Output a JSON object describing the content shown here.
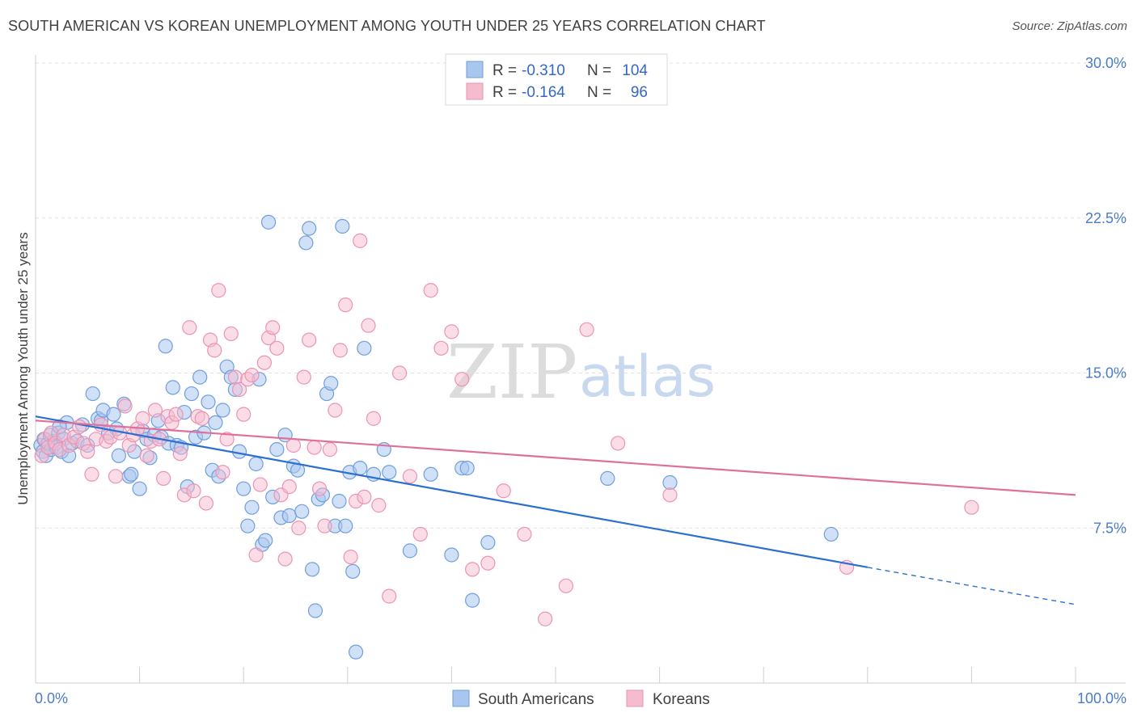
{
  "title": "SOUTH AMERICAN VS KOREAN UNEMPLOYMENT AMONG YOUTH UNDER 25 YEARS CORRELATION CHART",
  "source": "Source: ZipAtlas.com",
  "watermark": {
    "zip": "ZIP",
    "atlas": "atlas"
  },
  "colors": {
    "blue_fill": "#a9c6ee",
    "blue_stroke": "#6f9fdb",
    "blue_line": "#2b6fd1",
    "pink_fill": "#f5bcd0",
    "pink_stroke": "#ec93b3",
    "pink_line": "#e0709a",
    "grid": "#e0e0e0",
    "tick_label": "#4a7cc9"
  },
  "legend": {
    "rows": [
      {
        "r_label": "R = ",
        "r_value": "-0.310",
        "n_label": "N = ",
        "n_value": "104"
      },
      {
        "r_label": "R = ",
        "r_value": "-0.164",
        "n_label": "N = ",
        "n_value": "96"
      }
    ]
  },
  "chart_data": {
    "type": "scatter",
    "xlabel": "",
    "ylabel": "Unemployment Among Youth under 25 years",
    "xlim": [
      0,
      100
    ],
    "ylim": [
      0,
      30
    ],
    "x_tick_labels": [
      "0.0%",
      "100.0%"
    ],
    "y_ticks": [
      7.5,
      15.0,
      22.5,
      30.0
    ],
    "y_tick_labels": [
      "7.5%",
      "15.0%",
      "22.5%",
      "30.0%"
    ],
    "grid": true,
    "legend_position": "top-center",
    "series": [
      {
        "name": "South Americans",
        "color": "#a9c6ee",
        "trend": {
          "x": [
            0,
            80
          ],
          "y": [
            12.9,
            5.6
          ],
          "dashed_x": [
            80,
            100
          ],
          "dashed_y": [
            5.6,
            3.8
          ]
        },
        "points": [
          [
            0.5,
            11.5
          ],
          [
            0.7,
            11.2
          ],
          [
            0.8,
            11.8
          ],
          [
            1.0,
            11.0
          ],
          [
            1.2,
            11.6
          ],
          [
            1.4,
            12.0
          ],
          [
            1.5,
            11.3
          ],
          [
            1.8,
            11.7
          ],
          [
            2.0,
            11.4
          ],
          [
            2.2,
            12.1
          ],
          [
            2.5,
            11.2
          ],
          [
            2.7,
            11.8
          ],
          [
            3.0,
            12.6
          ],
          [
            3.2,
            11.0
          ],
          [
            3.5,
            11.6
          ],
          [
            4.0,
            11.7
          ],
          [
            4.5,
            12.5
          ],
          [
            5.0,
            11.5
          ],
          [
            5.5,
            14.0
          ],
          [
            6.0,
            12.8
          ],
          [
            6.3,
            12.7
          ],
          [
            6.5,
            13.2
          ],
          [
            7.0,
            12.1
          ],
          [
            7.5,
            13.0
          ],
          [
            7.8,
            12.3
          ],
          [
            8.0,
            11.0
          ],
          [
            8.5,
            13.5
          ],
          [
            9.0,
            10.0
          ],
          [
            9.2,
            10.1
          ],
          [
            9.5,
            11.2
          ],
          [
            10.0,
            9.4
          ],
          [
            10.3,
            12.2
          ],
          [
            10.7,
            11.8
          ],
          [
            11.0,
            10.9
          ],
          [
            11.4,
            12.0
          ],
          [
            11.8,
            12.7
          ],
          [
            12.1,
            11.9
          ],
          [
            12.5,
            16.3
          ],
          [
            12.8,
            11.6
          ],
          [
            13.2,
            14.3
          ],
          [
            13.6,
            11.5
          ],
          [
            14.0,
            11.4
          ],
          [
            14.3,
            13.1
          ],
          [
            14.6,
            9.5
          ],
          [
            15.0,
            14.0
          ],
          [
            15.4,
            11.9
          ],
          [
            15.8,
            14.8
          ],
          [
            16.2,
            12.1
          ],
          [
            16.6,
            13.6
          ],
          [
            17.0,
            10.3
          ],
          [
            17.3,
            12.6
          ],
          [
            17.6,
            10.0
          ],
          [
            18.0,
            13.2
          ],
          [
            18.4,
            15.3
          ],
          [
            18.8,
            14.8
          ],
          [
            19.2,
            14.2
          ],
          [
            19.6,
            11.2
          ],
          [
            20.0,
            9.4
          ],
          [
            20.4,
            7.6
          ],
          [
            20.8,
            8.5
          ],
          [
            21.2,
            10.6
          ],
          [
            21.5,
            14.7
          ],
          [
            21.8,
            6.7
          ],
          [
            22.1,
            6.9
          ],
          [
            22.4,
            22.3
          ],
          [
            22.8,
            9.0
          ],
          [
            23.2,
            11.3
          ],
          [
            23.6,
            8.0
          ],
          [
            24.0,
            12.0
          ],
          [
            24.4,
            8.1
          ],
          [
            24.8,
            10.5
          ],
          [
            25.2,
            10.3
          ],
          [
            25.6,
            8.3
          ],
          [
            26.0,
            21.3
          ],
          [
            26.3,
            22.0
          ],
          [
            26.6,
            5.5
          ],
          [
            26.9,
            3.5
          ],
          [
            27.2,
            8.9
          ],
          [
            27.6,
            9.1
          ],
          [
            28.0,
            14.0
          ],
          [
            28.4,
            14.5
          ],
          [
            28.8,
            7.6
          ],
          [
            29.2,
            8.8
          ],
          [
            29.5,
            22.1
          ],
          [
            29.8,
            7.6
          ],
          [
            30.2,
            10.2
          ],
          [
            30.5,
            5.4
          ],
          [
            30.8,
            1.5
          ],
          [
            31.2,
            10.4
          ],
          [
            31.6,
            16.2
          ],
          [
            32.5,
            10.1
          ],
          [
            33.5,
            11.3
          ],
          [
            34.0,
            10.2
          ],
          [
            36.0,
            6.4
          ],
          [
            38.0,
            10.1
          ],
          [
            40.0,
            6.2
          ],
          [
            41.0,
            10.4
          ],
          [
            41.5,
            10.4
          ],
          [
            42.0,
            4.0
          ],
          [
            43.5,
            6.8
          ],
          [
            55.0,
            9.9
          ],
          [
            61.0,
            9.7
          ],
          [
            76.5,
            7.2
          ],
          [
            2.3,
            12.4
          ]
        ]
      },
      {
        "name": "Koreans",
        "color": "#f5bcd0",
        "trend": {
          "x": [
            0,
            100
          ],
          "y": [
            12.7,
            9.1
          ]
        },
        "points": [
          [
            0.6,
            11.0
          ],
          [
            0.9,
            11.8
          ],
          [
            1.2,
            11.4
          ],
          [
            1.5,
            12.1
          ],
          [
            1.9,
            11.6
          ],
          [
            2.3,
            11.3
          ],
          [
            2.7,
            12.0
          ],
          [
            3.2,
            11.5
          ],
          [
            3.7,
            11.9
          ],
          [
            4.2,
            12.4
          ],
          [
            4.6,
            11.6
          ],
          [
            5.0,
            11.2
          ],
          [
            5.4,
            10.1
          ],
          [
            5.8,
            11.8
          ],
          [
            6.3,
            12.5
          ],
          [
            6.8,
            11.7
          ],
          [
            7.2,
            11.9
          ],
          [
            7.7,
            10.0
          ],
          [
            8.1,
            12.1
          ],
          [
            8.6,
            13.4
          ],
          [
            9.0,
            11.5
          ],
          [
            9.4,
            12.0
          ],
          [
            9.8,
            12.3
          ],
          [
            10.3,
            12.8
          ],
          [
            10.7,
            11.0
          ],
          [
            11.1,
            11.7
          ],
          [
            11.5,
            13.2
          ],
          [
            11.9,
            11.8
          ],
          [
            12.3,
            9.9
          ],
          [
            12.7,
            12.9
          ],
          [
            13.1,
            12.6
          ],
          [
            13.5,
            13.0
          ],
          [
            13.9,
            11.1
          ],
          [
            14.3,
            9.1
          ],
          [
            14.8,
            17.2
          ],
          [
            15.2,
            9.3
          ],
          [
            15.6,
            12.9
          ],
          [
            16.0,
            12.8
          ],
          [
            16.4,
            8.7
          ],
          [
            16.8,
            16.6
          ],
          [
            17.2,
            16.1
          ],
          [
            17.6,
            19.0
          ],
          [
            18.0,
            10.2
          ],
          [
            18.4,
            11.8
          ],
          [
            18.8,
            16.9
          ],
          [
            19.2,
            14.8
          ],
          [
            19.6,
            14.2
          ],
          [
            20.0,
            13.0
          ],
          [
            20.4,
            14.7
          ],
          [
            20.8,
            14.9
          ],
          [
            21.2,
            6.2
          ],
          [
            21.6,
            9.6
          ],
          [
            22.0,
            15.5
          ],
          [
            22.4,
            16.7
          ],
          [
            22.8,
            17.2
          ],
          [
            23.2,
            16.2
          ],
          [
            23.6,
            9.1
          ],
          [
            24.0,
            6.0
          ],
          [
            24.4,
            9.5
          ],
          [
            24.8,
            11.5
          ],
          [
            25.3,
            7.5
          ],
          [
            25.8,
            14.8
          ],
          [
            26.3,
            16.6
          ],
          [
            26.8,
            11.4
          ],
          [
            27.3,
            9.4
          ],
          [
            27.8,
            7.6
          ],
          [
            28.3,
            11.3
          ],
          [
            28.8,
            13.2
          ],
          [
            29.3,
            16.1
          ],
          [
            29.8,
            18.3
          ],
          [
            30.3,
            6.1
          ],
          [
            30.8,
            8.8
          ],
          [
            31.2,
            21.4
          ],
          [
            31.6,
            9.0
          ],
          [
            32.0,
            17.3
          ],
          [
            32.5,
            12.8
          ],
          [
            33.0,
            8.6
          ],
          [
            34.0,
            4.2
          ],
          [
            35.0,
            15.0
          ],
          [
            36.0,
            10.0
          ],
          [
            37.0,
            7.2
          ],
          [
            38.0,
            19.0
          ],
          [
            39.0,
            16.2
          ],
          [
            40.0,
            17.0
          ],
          [
            41.0,
            14.7
          ],
          [
            42.0,
            5.5
          ],
          [
            43.5,
            5.8
          ],
          [
            45.0,
            9.3
          ],
          [
            47.0,
            7.2
          ],
          [
            49.0,
            3.1
          ],
          [
            51.0,
            4.7
          ],
          [
            53.0,
            17.1
          ],
          [
            56.0,
            11.6
          ],
          [
            61.0,
            9.1
          ],
          [
            78.0,
            5.6
          ],
          [
            90.0,
            8.5
          ]
        ]
      }
    ]
  }
}
